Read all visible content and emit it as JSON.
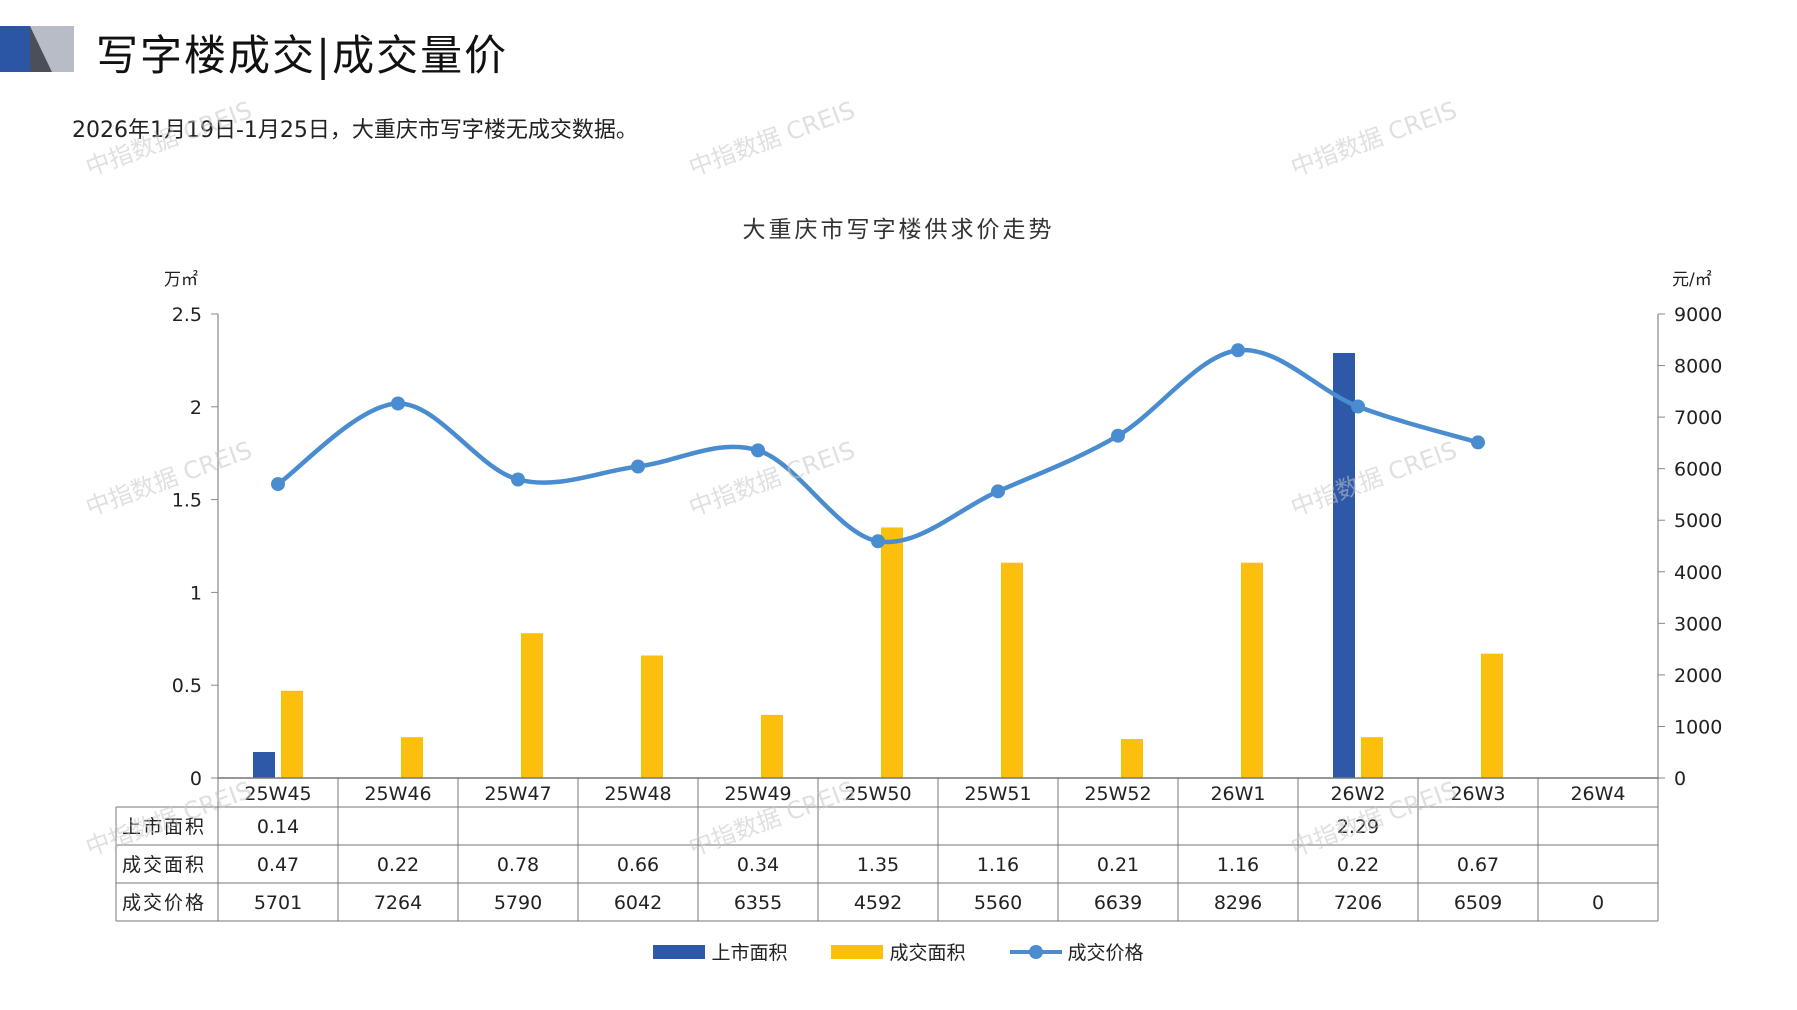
{
  "page": {
    "title": "写字楼成交|成交量价",
    "subtitle": "2026年1月19日-1月25日，大重庆市写字楼无成交数据。",
    "watermark": "中指数据 CREIS",
    "colors": {
      "logo_blue": "#2b56a6",
      "logo_grey": "#b7bcc7",
      "logo_dark": "#4a4f5a"
    }
  },
  "chart_data": {
    "type": "bar",
    "title": "大重庆市写字楼供求价走势",
    "y_left_unit": "万㎡",
    "y_right_unit": "元/㎡",
    "categories": [
      "25W45",
      "25W46",
      "25W47",
      "25W48",
      "25W49",
      "25W50",
      "25W51",
      "25W52",
      "26W1",
      "26W2",
      "26W3",
      "26W4"
    ],
    "y_left": {
      "min": 0,
      "max": 2.5,
      "ticks": [
        "0",
        "0.5",
        "1",
        "1.5",
        "2",
        "2.5"
      ],
      "tick_values": [
        0,
        0.5,
        1,
        1.5,
        2,
        2.5
      ]
    },
    "y_right": {
      "min": 0,
      "max": 9000,
      "ticks": [
        "0",
        "1000",
        "2000",
        "3000",
        "4000",
        "5000",
        "6000",
        "7000",
        "8000",
        "9000"
      ],
      "tick_values": [
        0,
        1000,
        2000,
        3000,
        4000,
        5000,
        6000,
        7000,
        8000,
        9000
      ]
    },
    "series": [
      {
        "name": "上市面积",
        "type": "bar",
        "axis": "left",
        "color": "#2e58a8",
        "values": [
          0.14,
          null,
          null,
          null,
          null,
          null,
          null,
          null,
          null,
          2.29,
          null,
          null
        ],
        "labels": [
          "0.14",
          "",
          "",
          "",
          "",
          "",
          "",
          "",
          "",
          "2.29",
          "",
          ""
        ]
      },
      {
        "name": "成交面积",
        "type": "bar",
        "axis": "left",
        "color": "#fbbf0c",
        "values": [
          0.47,
          0.22,
          0.78,
          0.66,
          0.34,
          1.35,
          1.16,
          0.21,
          1.16,
          0.22,
          0.67,
          null
        ],
        "labels": [
          "0.47",
          "0.22",
          "0.78",
          "0.66",
          "0.34",
          "1.35",
          "1.16",
          "0.21",
          "1.16",
          "0.22",
          "0.67",
          ""
        ]
      },
      {
        "name": "成交价格",
        "type": "line",
        "axis": "right",
        "color": "#4a8cd0",
        "values": [
          5701,
          7264,
          5790,
          6042,
          6355,
          4592,
          5560,
          6639,
          8296,
          7206,
          6509,
          null
        ],
        "labels": [
          "5701",
          "7264",
          "5790",
          "6042",
          "6355",
          "4592",
          "5560",
          "6639",
          "8296",
          "7206",
          "6509",
          "0"
        ]
      }
    ],
    "grid": false,
    "legend": "bottom-center",
    "data_table": true
  }
}
